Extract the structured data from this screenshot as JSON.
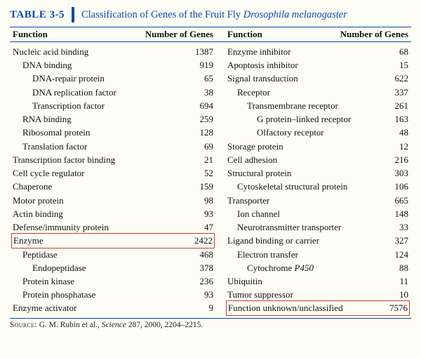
{
  "table_label": "TABLE  3-5",
  "title_plain": "Classification of Genes of the Fruit Fly ",
  "title_italic": "Drosophila melanogaster",
  "headers": {
    "function": "Function",
    "number": "Number of Genes"
  },
  "colors": {
    "accent": "#0b4aa8",
    "highlight_border": "#cc3a2d",
    "bg": "#fdfdf6"
  },
  "left_rows": [
    {
      "label": "Nucleic acid binding",
      "value": "1387",
      "indent": 0
    },
    {
      "label": "DNA binding",
      "value": "919",
      "indent": 1
    },
    {
      "label": "DNA-repair protein",
      "value": "65",
      "indent": 2
    },
    {
      "label": "DNA replication factor",
      "value": "38",
      "indent": 2
    },
    {
      "label": "Transcription factor",
      "value": "694",
      "indent": 2
    },
    {
      "label": "RNA binding",
      "value": "259",
      "indent": 1
    },
    {
      "label": "Ribosomal protein",
      "value": "128",
      "indent": 1
    },
    {
      "label": "Translation factor",
      "value": "69",
      "indent": 1
    },
    {
      "label": "Transcription factor binding",
      "value": "21",
      "indent": 0
    },
    {
      "label": "Cell cycle regulator",
      "value": "52",
      "indent": 0
    },
    {
      "label": "Chaperone",
      "value": "159",
      "indent": 0
    },
    {
      "label": "Motor protein",
      "value": "98",
      "indent": 0
    },
    {
      "label": "Actin binding",
      "value": "93",
      "indent": 0
    },
    {
      "label": "Defense/immunity protein",
      "value": "47",
      "indent": 0
    },
    {
      "label": "Enzyme",
      "value": "2422",
      "indent": 0,
      "boxed": true
    },
    {
      "label": "Peptidase",
      "value": "468",
      "indent": 1
    },
    {
      "label": "Endopeptidase",
      "value": "378",
      "indent": 2
    },
    {
      "label": "Protein kinase",
      "value": "236",
      "indent": 1
    },
    {
      "label": "Protein phosphatase",
      "value": "93",
      "indent": 1
    },
    {
      "label": "Enzyme activator",
      "value": "9",
      "indent": 0
    }
  ],
  "right_rows": [
    {
      "label": "Enzyme inhibitor",
      "value": "68",
      "indent": 0
    },
    {
      "label": "Apoptosis inhibitor",
      "value": "15",
      "indent": 0
    },
    {
      "label": "Signal transduction",
      "value": "622",
      "indent": 0
    },
    {
      "label": "Receptor",
      "value": "337",
      "indent": 1
    },
    {
      "label": "Transmembrane receptor",
      "value": "261",
      "indent": 2
    },
    {
      "label": "G protein–linked receptor",
      "value": "163",
      "indent": 3
    },
    {
      "label": "Olfactory receptor",
      "value": "48",
      "indent": 3
    },
    {
      "label": "Storage protein",
      "value": "12",
      "indent": 0
    },
    {
      "label": "Cell adhesion",
      "value": "216",
      "indent": 0
    },
    {
      "label": "Structural protein",
      "value": "303",
      "indent": 0
    },
    {
      "label": "Cytoskeletal structural protein",
      "value": "106",
      "indent": 1
    },
    {
      "label": "Transporter",
      "value": "665",
      "indent": 0
    },
    {
      "label": "Ion channel",
      "value": "148",
      "indent": 1
    },
    {
      "label": "Neurotransmitter transporter",
      "value": "33",
      "indent": 1
    },
    {
      "label": "Ligand binding or carrier",
      "value": "327",
      "indent": 0
    },
    {
      "label": "Electron transfer",
      "value": "124",
      "indent": 1
    },
    {
      "label": "Cytochrome ",
      "italic_tail": "P450",
      "value": "88",
      "indent": 2
    },
    {
      "label": "Ubiquitin",
      "value": "11",
      "indent": 0
    },
    {
      "label": "Tumor suppressor",
      "value": "10",
      "indent": 0
    },
    {
      "label": "Function unknown/unclassified",
      "value": "7576",
      "indent": 0,
      "boxed": true
    }
  ],
  "source_prefix": "Source:",
  "source_text": " G. M. Rubin et al., ",
  "source_italic": "Science",
  "source_tail": " 287, 2000, 2204–2215."
}
